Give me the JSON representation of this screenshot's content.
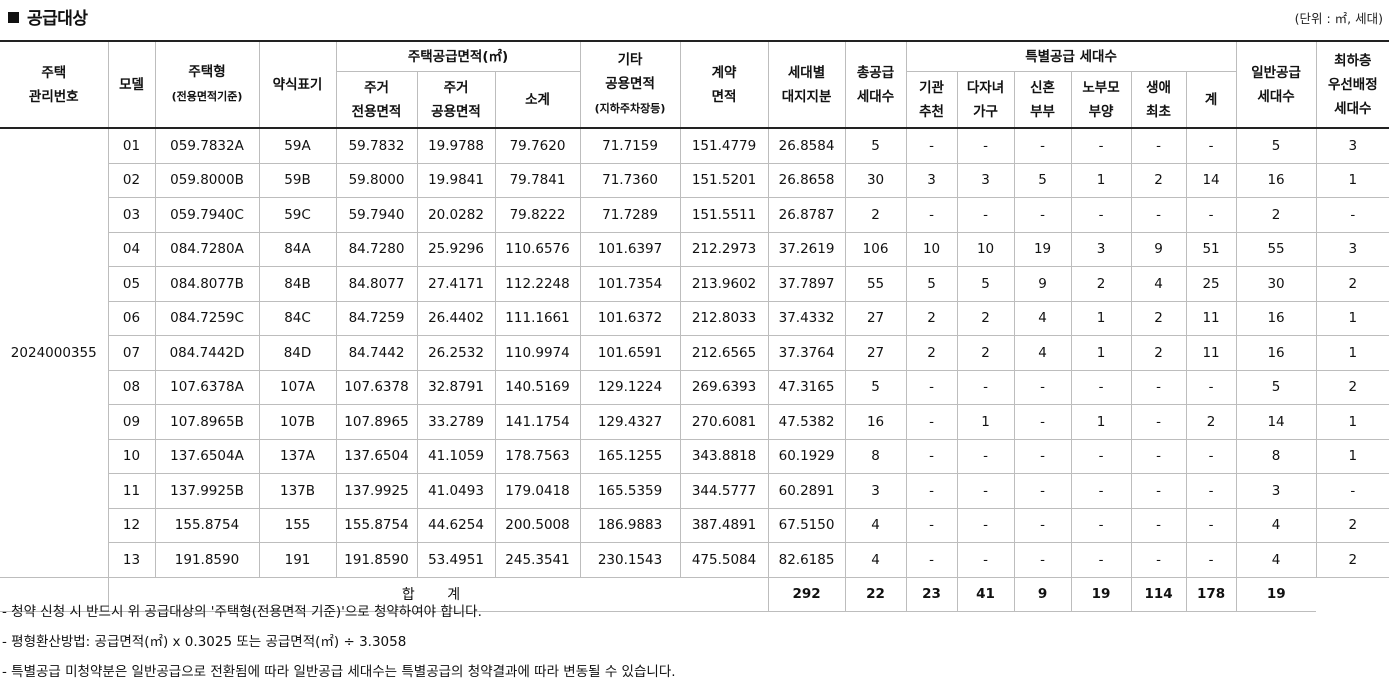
{
  "title": "공급대상",
  "unit": "(단위 : ㎡, 세대)",
  "header": {
    "complex_no": "주택\n관리번호",
    "model": "모델",
    "type": "주택형",
    "type_sub": "(전용면적기준)",
    "abbr": "약식표기",
    "supply_area": "주택공급면적(㎡)",
    "res_exclusive": "주거\n전용면적",
    "res_common": "주거\n공용면적",
    "subtotal": "소계",
    "other_common": "기타\n공용면적",
    "other_common_sub": "(지하주차장등)",
    "contract_area": "계약\n면적",
    "land_share": "세대별\n대지지분",
    "total_supply": "총공급\n세대수",
    "special_supply": "특별공급 세대수",
    "sp_agency": "기관\n추천",
    "sp_multichild": "다자녀\n가구",
    "sp_newlywed": "신혼\n부부",
    "sp_elderly": "노부모\n부양",
    "sp_firsttime": "생애\n최초",
    "sp_total": "계",
    "general": "일반공급\n세대수",
    "lowest_floor": "최하층\n우선배정\n세대수"
  },
  "complex_no": "2024000355",
  "rows": [
    [
      "01",
      "059.7832A",
      "59A",
      "59.7832",
      "19.9788",
      "79.7620",
      "71.7159",
      "151.4779",
      "26.8584",
      "5",
      "-",
      "-",
      "-",
      "-",
      "-",
      "-",
      "5",
      "3"
    ],
    [
      "02",
      "059.8000B",
      "59B",
      "59.8000",
      "19.9841",
      "79.7841",
      "71.7360",
      "151.5201",
      "26.8658",
      "30",
      "3",
      "3",
      "5",
      "1",
      "2",
      "14",
      "16",
      "1"
    ],
    [
      "03",
      "059.7940C",
      "59C",
      "59.7940",
      "20.0282",
      "79.8222",
      "71.7289",
      "151.5511",
      "26.8787",
      "2",
      "-",
      "-",
      "-",
      "-",
      "-",
      "-",
      "2",
      "-"
    ],
    [
      "04",
      "084.7280A",
      "84A",
      "84.7280",
      "25.9296",
      "110.6576",
      "101.6397",
      "212.2973",
      "37.2619",
      "106",
      "10",
      "10",
      "19",
      "3",
      "9",
      "51",
      "55",
      "3"
    ],
    [
      "05",
      "084.8077B",
      "84B",
      "84.8077",
      "27.4171",
      "112.2248",
      "101.7354",
      "213.9602",
      "37.7897",
      "55",
      "5",
      "5",
      "9",
      "2",
      "4",
      "25",
      "30",
      "2"
    ],
    [
      "06",
      "084.7259C",
      "84C",
      "84.7259",
      "26.4402",
      "111.1661",
      "101.6372",
      "212.8033",
      "37.4332",
      "27",
      "2",
      "2",
      "4",
      "1",
      "2",
      "11",
      "16",
      "1"
    ],
    [
      "07",
      "084.7442D",
      "84D",
      "84.7442",
      "26.2532",
      "110.9974",
      "101.6591",
      "212.6565",
      "37.3764",
      "27",
      "2",
      "2",
      "4",
      "1",
      "2",
      "11",
      "16",
      "1"
    ],
    [
      "08",
      "107.6378A",
      "107A",
      "107.6378",
      "32.8791",
      "140.5169",
      "129.1224",
      "269.6393",
      "47.3165",
      "5",
      "-",
      "-",
      "-",
      "-",
      "-",
      "-",
      "5",
      "2"
    ],
    [
      "09",
      "107.8965B",
      "107B",
      "107.8965",
      "33.2789",
      "141.1754",
      "129.4327",
      "270.6081",
      "47.5382",
      "16",
      "-",
      "1",
      "-",
      "1",
      "-",
      "2",
      "14",
      "1"
    ],
    [
      "10",
      "137.6504A",
      "137A",
      "137.6504",
      "41.1059",
      "178.7563",
      "165.1255",
      "343.8818",
      "60.1929",
      "8",
      "-",
      "-",
      "-",
      "-",
      "-",
      "-",
      "8",
      "1"
    ],
    [
      "11",
      "137.9925B",
      "137B",
      "137.9925",
      "41.0493",
      "179.0418",
      "165.5359",
      "344.5777",
      "60.2891",
      "3",
      "-",
      "-",
      "-",
      "-",
      "-",
      "-",
      "3",
      "-"
    ],
    [
      "12",
      "155.8754",
      "155",
      "155.8754",
      "44.6254",
      "200.5008",
      "186.9883",
      "387.4891",
      "67.5150",
      "4",
      "-",
      "-",
      "-",
      "-",
      "-",
      "-",
      "4",
      "2"
    ],
    [
      "13",
      "191.8590",
      "191",
      "191.8590",
      "53.4951",
      "245.3541",
      "230.1543",
      "475.5084",
      "82.6185",
      "4",
      "-",
      "-",
      "-",
      "-",
      "-",
      "-",
      "4",
      "2"
    ]
  ],
  "total": {
    "label": "합 계",
    "values": [
      "292",
      "22",
      "23",
      "41",
      "9",
      "19",
      "114",
      "178",
      "19"
    ]
  },
  "notes": [
    "- 청약 신청 시 반드시 위 공급대상의 '주택형(전용면적 기준)'으로 청약하여야 합니다.",
    "- 평형환산방법: 공급면적(㎡) x 0.3025 또는 공급면적(㎡) ÷ 3.3058",
    "- 특별공급 미청약분은 일반공급으로 전환됨에 따라 일반공급 세대수는 특별공급의 청약결과에 따라 변동될 수 있습니다."
  ]
}
